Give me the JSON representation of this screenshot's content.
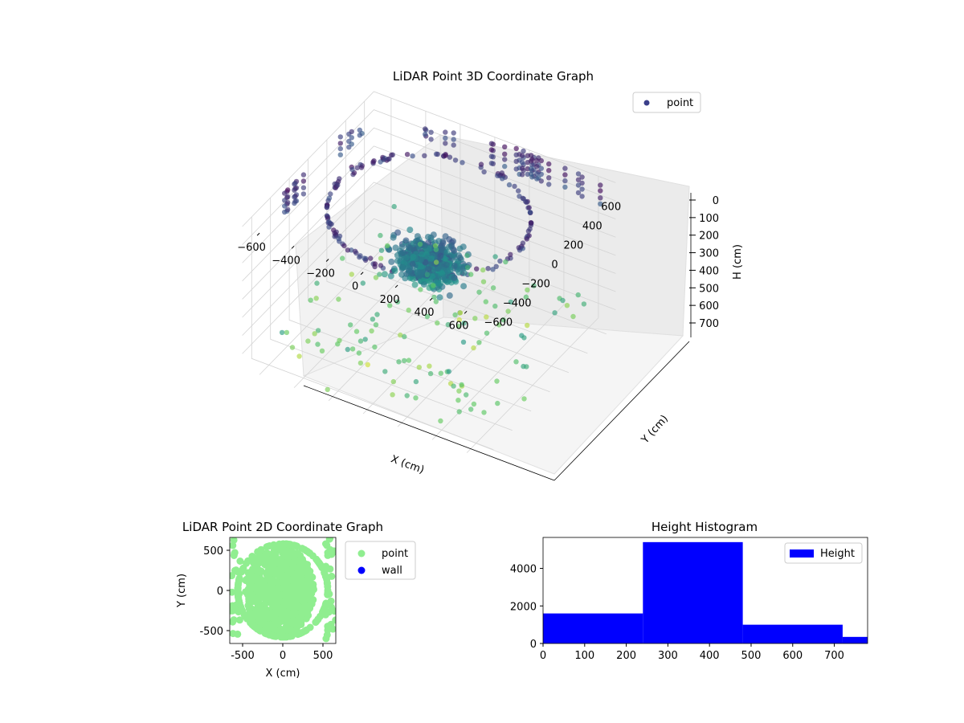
{
  "chart_data": [
    {
      "type": "scatter3d",
      "title": "LiDAR Point 3D Coordinate Graph",
      "xlabel": "X (cm)",
      "ylabel": "Y (cm)",
      "zlabel": "H (cm)",
      "xlim": [
        -700,
        700
      ],
      "ylim": [
        -700,
        700
      ],
      "zlim": [
        0,
        780
      ],
      "zinverted": true,
      "x_ticks": [
        "−600",
        "−400",
        "−200",
        "0",
        "200",
        "400",
        "600"
      ],
      "y_ticks": [
        "−600",
        "−400",
        "−200",
        "0",
        "200",
        "400",
        "600"
      ],
      "z_ticks": [
        "0",
        "100",
        "200",
        "300",
        "400",
        "500",
        "600",
        "700"
      ],
      "colormap": "viridis",
      "legend": {
        "placement": "top-right",
        "entries": [
          {
            "label": "point",
            "color": "#3b3f8a"
          }
        ]
      },
      "grid": true,
      "series": [
        {
          "name": "point",
          "structures": [
            {
              "kind": "ring",
              "radius": 520,
              "height": 80,
              "count": 120
            },
            {
              "kind": "dense-blob",
              "center": [
                0,
                0,
                330
              ],
              "count": 200
            },
            {
              "kind": "upper-grid-columns",
              "height_range": [
                0,
                150
              ]
            },
            {
              "kind": "scattered-floor-points",
              "height_range": [
                550,
                760
              ]
            }
          ]
        }
      ]
    },
    {
      "type": "scatter",
      "title": "LiDAR Point 2D Coordinate Graph",
      "xlabel": "X (cm)",
      "ylabel": "Y (cm)",
      "xlim": [
        -660,
        660
      ],
      "ylim": [
        -660,
        660
      ],
      "x_ticks": [
        -500,
        0,
        500
      ],
      "y_ticks": [
        -500,
        0,
        500
      ],
      "legend": {
        "placement": "outside-right",
        "entries": [
          {
            "label": "point",
            "color": "#90ee90"
          },
          {
            "label": "wall",
            "color": "#0000ff"
          }
        ]
      },
      "series": [
        {
          "name": "point",
          "color": "#90ee90",
          "shape": "dense ellipse filling most of the plot with a ring and corner points"
        },
        {
          "name": "wall",
          "color": "#0000ff",
          "points": []
        }
      ]
    },
    {
      "type": "histogram",
      "title": "Height Histogram",
      "xlabel": "",
      "ylabel": "",
      "xlim": [
        0,
        780
      ],
      "ylim": [
        0,
        5650
      ],
      "x_ticks": [
        0,
        100,
        200,
        300,
        400,
        500,
        600,
        700
      ],
      "y_ticks": [
        0,
        2000,
        4000
      ],
      "color": "#0000ff",
      "legend": {
        "placement": "top-right",
        "entries": [
          {
            "label": "Height",
            "color": "#0000ff"
          }
        ]
      },
      "bins": [
        {
          "x0": 0,
          "x1": 240,
          "count": 1600
        },
        {
          "x0": 240,
          "x1": 480,
          "count": 5400
        },
        {
          "x0": 480,
          "x1": 720,
          "count": 1000
        },
        {
          "x0": 720,
          "x1": 780,
          "count": 350
        }
      ]
    }
  ]
}
